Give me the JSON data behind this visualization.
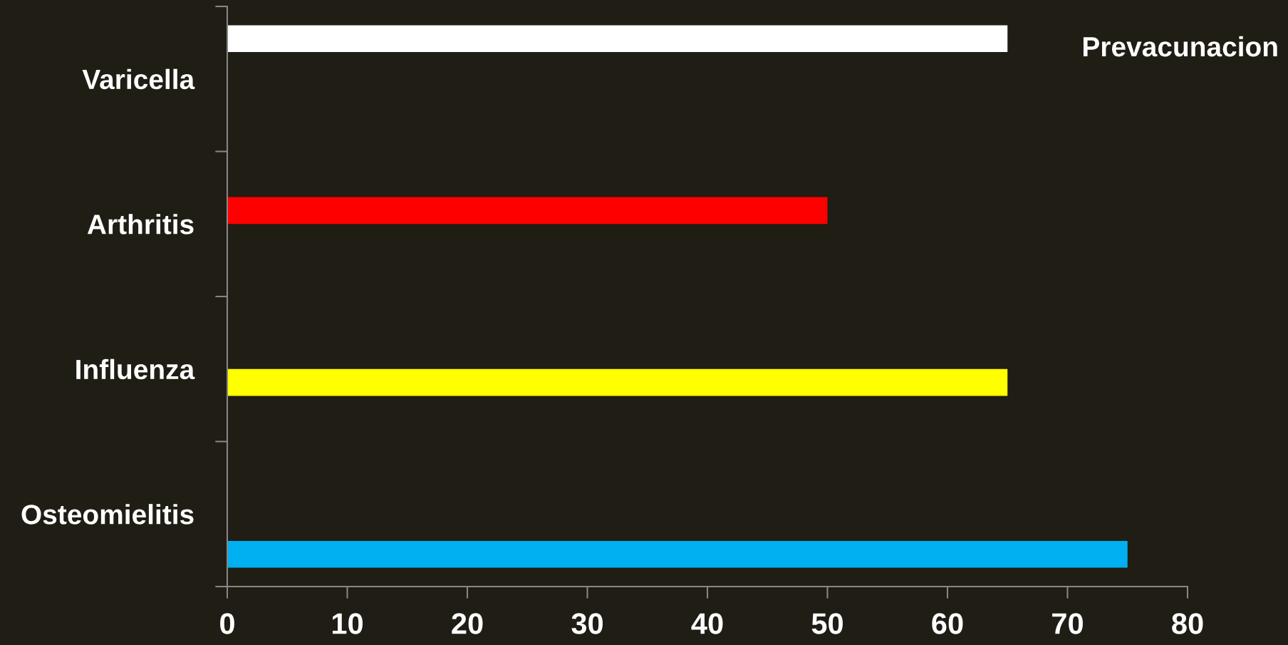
{
  "chart_data": {
    "type": "bar",
    "orientation": "horizontal",
    "categories": [
      "Varicella",
      "Arthritis",
      "Influenza",
      "Osteomielitis"
    ],
    "series": [
      {
        "color": "#ffffff",
        "values": [
          65,
          null,
          null,
          null
        ]
      },
      {
        "color": "#ff0000",
        "values": [
          null,
          50,
          null,
          null
        ]
      },
      {
        "color": "#ffff00",
        "values": [
          null,
          null,
          65,
          null
        ]
      },
      {
        "color": "#00b0f0",
        "values": [
          null,
          null,
          null,
          75
        ]
      }
    ],
    "xlim": [
      0,
      80
    ],
    "xticks": [
      0,
      10,
      20,
      30,
      40,
      50,
      60,
      70,
      80
    ],
    "annotations": [
      "Prevacunacion"
    ]
  }
}
